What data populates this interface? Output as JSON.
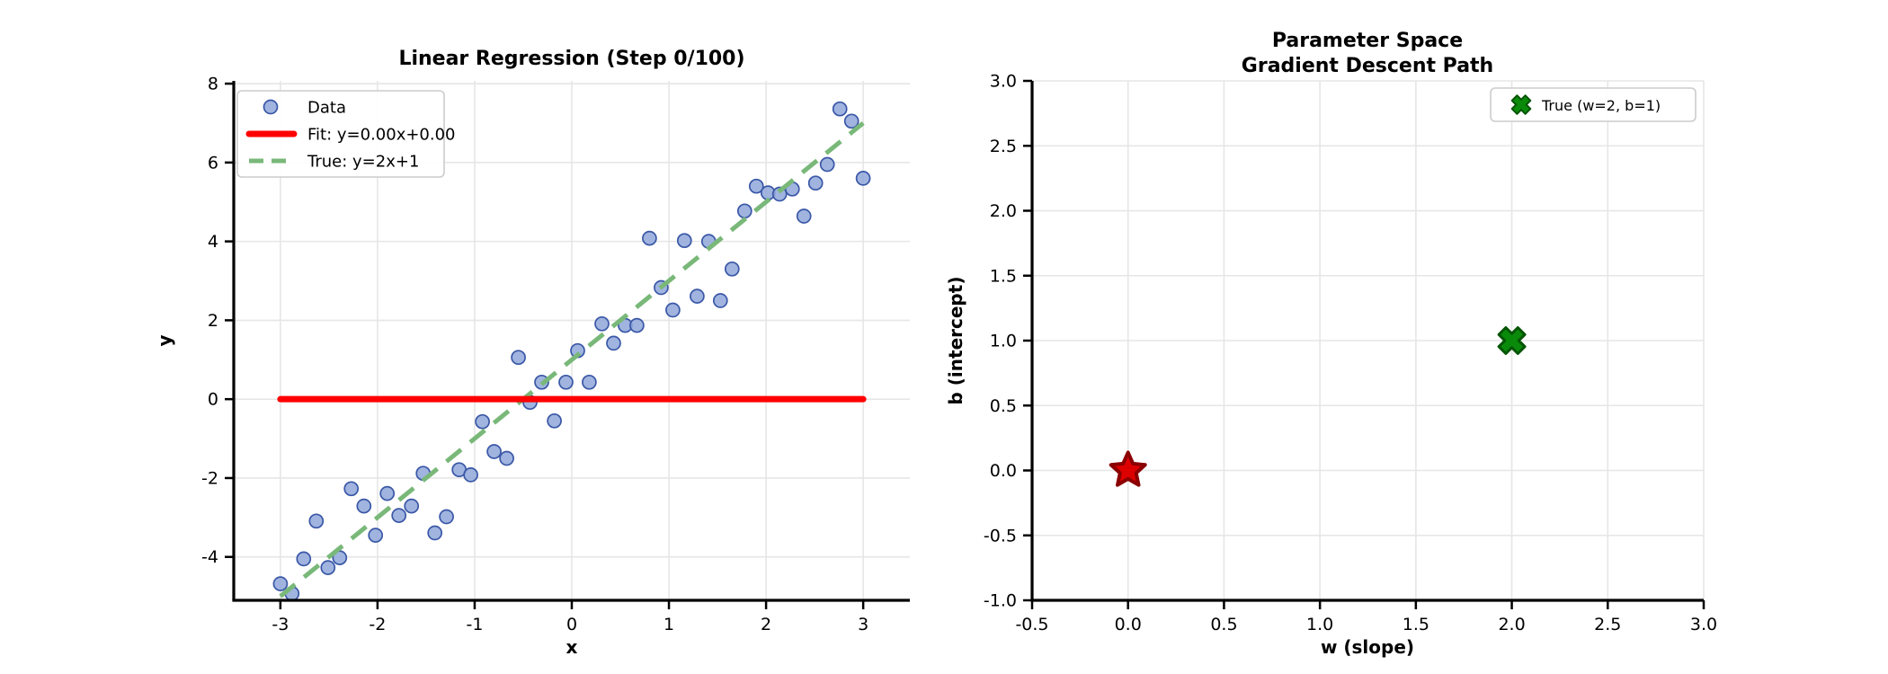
{
  "figure": {
    "background": "#ffffff",
    "grid_color": "#e6e6e6",
    "spine_color": "#000000"
  },
  "chart_data": [
    {
      "id": "linear-regression",
      "type": "scatter",
      "title": "Linear Regression (Step 0/100)",
      "xlabel": "x",
      "ylabel": "y",
      "xlim": [
        -3.48,
        3.48
      ],
      "ylim": [
        -5.1,
        8.07
      ],
      "xticks": [
        -3,
        -2,
        -1,
        0,
        1,
        2,
        3
      ],
      "yticks": [
        -4,
        -2,
        0,
        2,
        4,
        6,
        8
      ],
      "tick_decimals": 0,
      "grid": true,
      "legend_position": "upper left",
      "series": [
        {
          "name": "Data",
          "kind": "scatter",
          "color": "#8fa7d9",
          "edge_color": "#3a57a7",
          "points": [
            [
              -3.0,
              -4.68
            ],
            [
              -2.88,
              -4.93
            ],
            [
              -2.76,
              -4.05
            ],
            [
              -2.63,
              -3.09
            ],
            [
              -2.51,
              -4.27
            ],
            [
              -2.39,
              -4.02
            ],
            [
              -2.27,
              -2.27
            ],
            [
              -2.14,
              -2.71
            ],
            [
              -2.02,
              -3.45
            ],
            [
              -1.9,
              -2.39
            ],
            [
              -1.78,
              -2.95
            ],
            [
              -1.65,
              -2.71
            ],
            [
              -1.53,
              -1.88
            ],
            [
              -1.41,
              -3.39
            ],
            [
              -1.29,
              -2.98
            ],
            [
              -1.16,
              -1.79
            ],
            [
              -1.04,
              -1.92
            ],
            [
              -0.92,
              -0.57
            ],
            [
              -0.8,
              -1.33
            ],
            [
              -0.67,
              -1.5
            ],
            [
              -0.55,
              1.06
            ],
            [
              -0.43,
              -0.08
            ],
            [
              -0.31,
              0.43
            ],
            [
              -0.18,
              -0.55
            ],
            [
              -0.06,
              0.43
            ],
            [
              0.06,
              1.23
            ],
            [
              0.18,
              0.43
            ],
            [
              0.31,
              1.91
            ],
            [
              0.43,
              1.42
            ],
            [
              0.55,
              1.87
            ],
            [
              0.67,
              1.87
            ],
            [
              0.8,
              4.08
            ],
            [
              0.92,
              2.83
            ],
            [
              1.04,
              2.26
            ],
            [
              1.16,
              4.02
            ],
            [
              1.29,
              2.61
            ],
            [
              1.41,
              4.0
            ],
            [
              1.53,
              2.5
            ],
            [
              1.65,
              3.3
            ],
            [
              1.78,
              4.77
            ],
            [
              1.9,
              5.4
            ],
            [
              2.02,
              5.23
            ],
            [
              2.14,
              5.2
            ],
            [
              2.27,
              5.33
            ],
            [
              2.39,
              4.64
            ],
            [
              2.51,
              5.48
            ],
            [
              2.63,
              5.95
            ],
            [
              2.76,
              7.36
            ],
            [
              2.88,
              7.05
            ],
            [
              3.0,
              5.6
            ]
          ]
        },
        {
          "name": "Fit: y=0.00x+0.00",
          "kind": "line",
          "style": "solid",
          "color": "#ff0000",
          "width": 7,
          "x": [
            -3,
            3
          ],
          "y": [
            0,
            0
          ]
        },
        {
          "name": "True: y=2x+1",
          "kind": "line",
          "style": "dashed",
          "color": "#79b879",
          "width": 5,
          "x": [
            -3,
            3
          ],
          "y": [
            -5,
            7
          ]
        }
      ]
    },
    {
      "id": "parameter-space",
      "type": "scatter",
      "title": "Parameter Space",
      "subtitle": "Gradient Descent Path",
      "xlabel": "w (slope)",
      "ylabel": "b (intercept)",
      "xlim": [
        -0.5,
        3.0
      ],
      "ylim": [
        -1.0,
        3.0
      ],
      "xticks": [
        -0.5,
        0.0,
        0.5,
        1.0,
        1.5,
        2.0,
        2.5,
        3.0
      ],
      "yticks": [
        -1.0,
        -0.5,
        0.0,
        0.5,
        1.0,
        1.5,
        2.0,
        2.5,
        3.0
      ],
      "tick_decimals": 1,
      "grid": true,
      "legend_position": "upper right",
      "markers": [
        {
          "shape": "star",
          "w": 0,
          "b": 0,
          "color": "#dd0000",
          "edge_color": "#8b0000",
          "in_legend": false
        },
        {
          "shape": "X",
          "w": 2,
          "b": 1,
          "color": "#0a8a0a",
          "edge_color": "#055505",
          "in_legend": true,
          "label": "True (w=2, b=1)"
        }
      ]
    }
  ]
}
